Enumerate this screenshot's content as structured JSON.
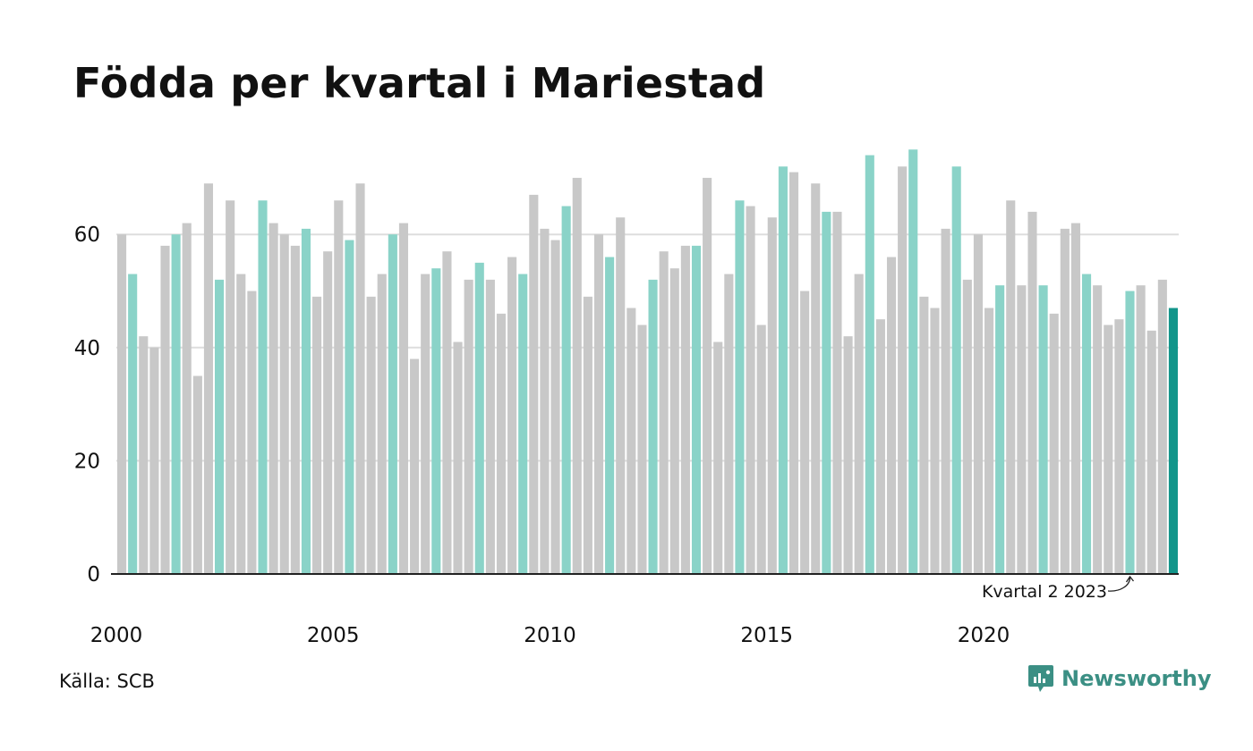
{
  "title": "Födda per kvartal i Mariestad",
  "source": "Källa: SCB",
  "brand": {
    "name": "Newsworthy"
  },
  "colors": {
    "highlight": "#8ad3c8",
    "other": "#c8c8c8",
    "latest": "#12958a",
    "grid": "#dddddd",
    "axis": "#222222",
    "brand": "#3b8f84"
  },
  "chart_data": {
    "type": "bar",
    "title": "Födda per kvartal i Mariestad",
    "xlabel": "",
    "ylabel": "",
    "ylim": [
      0,
      75
    ],
    "yticks": [
      0,
      20,
      40,
      60
    ],
    "x_tick_labels": [
      "2000",
      "2005",
      "2010",
      "2015",
      "2020"
    ],
    "highlight_quarter": 2,
    "start": {
      "year": 2000,
      "quarter": 1
    },
    "values": [
      60,
      53,
      42,
      40,
      58,
      60,
      62,
      35,
      69,
      52,
      66,
      53,
      50,
      66,
      62,
      60,
      58,
      61,
      49,
      57,
      66,
      59,
      69,
      49,
      53,
      60,
      62,
      38,
      53,
      54,
      57,
      41,
      52,
      55,
      52,
      46,
      56,
      53,
      67,
      61,
      59,
      65,
      70,
      49,
      60,
      56,
      63,
      47,
      44,
      52,
      57,
      54,
      58,
      58,
      70,
      41,
      53,
      66,
      65,
      44,
      63,
      72,
      71,
      50,
      69,
      64,
      64,
      42,
      53,
      74,
      45,
      56,
      72,
      75,
      49,
      47,
      61,
      72,
      52,
      60,
      47,
      51,
      66,
      51,
      64,
      51,
      46,
      61,
      62,
      53,
      51,
      44,
      45,
      50,
      51,
      43,
      52,
      47
    ],
    "annotation": "Kvartal 2 2023",
    "grid": true
  }
}
